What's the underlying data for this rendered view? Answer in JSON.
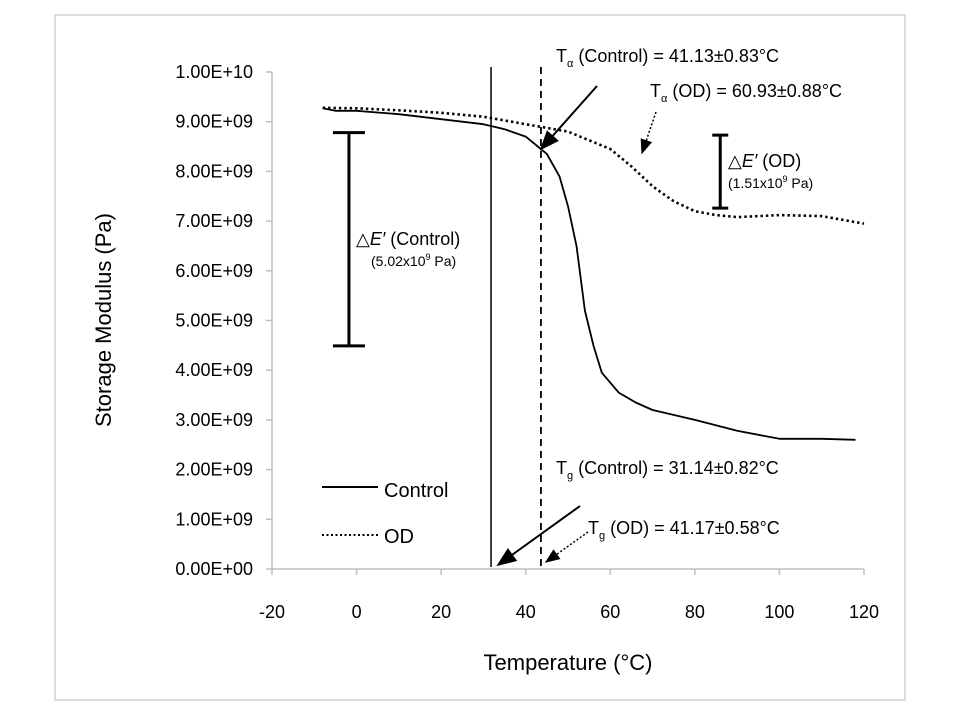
{
  "chart_data": {
    "type": "line",
    "xlabel": "Temperature (°C)",
    "ylabel": "Storage Modulus (Pa)",
    "xlim": [
      -20,
      120
    ],
    "ylim": [
      0,
      10000000000
    ],
    "x_ticks": [
      "-20",
      "0",
      "20",
      "40",
      "60",
      "80",
      "100",
      "120"
    ],
    "y_ticks": [
      "0.00E+00",
      "1.00E+09",
      "2.00E+09",
      "3.00E+09",
      "4.00E+09",
      "5.00E+09",
      "6.00E+09",
      "7.00E+09",
      "8.00E+09",
      "9.00E+09",
      "1.00E+10"
    ],
    "grid": false,
    "legend_position": "bottom-left",
    "series": [
      {
        "name": "Control",
        "style": "solid",
        "x": [
          -8,
          -5,
          0,
          10,
          20,
          30,
          35,
          40,
          45,
          48,
          50,
          52,
          54,
          56,
          58,
          62,
          66,
          70,
          80,
          90,
          100,
          110,
          118
        ],
        "y": [
          9270000000.0,
          9220000000.0,
          9220000000.0,
          9150000000.0,
          9050000000.0,
          8950000000.0,
          8850000000.0,
          8700000000.0,
          8350000000.0,
          7900000000.0,
          7300000000.0,
          6500000000.0,
          5200000000.0,
          4500000000.0,
          3950000000.0,
          3550000000.0,
          3350000000.0,
          3200000000.0,
          3000000000.0,
          2780000000.0,
          2620000000.0,
          2620000000.0,
          2600000000.0
        ]
      },
      {
        "name": "OD",
        "style": "dotted",
        "x": [
          -8,
          0,
          10,
          20,
          30,
          40,
          50,
          60,
          65,
          70,
          75,
          80,
          85,
          90,
          100,
          110,
          120
        ],
        "y": [
          9280000000.0,
          9270000000.0,
          9230000000.0,
          9180000000.0,
          9100000000.0,
          8950000000.0,
          8800000000.0,
          8450000000.0,
          8100000000.0,
          7700000000.0,
          7400000000.0,
          7200000000.0,
          7120000000.0,
          7080000000.0,
          7120000000.0,
          7100000000.0,
          6950000000.0
        ]
      }
    ],
    "vertical_lines": [
      {
        "x": 31.8,
        "style": "solid"
      },
      {
        "x": 43.6,
        "style": "dashed"
      }
    ],
    "error_bars": [
      {
        "x": -1.8,
        "y_top": 8780000000.0,
        "y_bottom": 4490000000.0
      },
      {
        "x": 86,
        "y_top": 8730000000.0,
        "y_bottom": 7260000000.0
      }
    ],
    "annotations": {
      "ta_control": {
        "sym": "T",
        "sub": "α",
        "text": " (Control) = 41.13±0.83°C"
      },
      "ta_od": {
        "sym": "T",
        "sub": "α",
        "text": " (OD) = 60.93±0.88°C"
      },
      "tg_control": {
        "sym": "T",
        "sub": "g",
        "text": " (Control) = 31.14±0.82°C"
      },
      "tg_od": {
        "sym": "T",
        "sub": "g",
        "text": " (OD) = 41.17±0.58°C"
      },
      "de_control": {
        "delta": "△",
        "e": "E′",
        "text": " (Control)",
        "value": "(5.02x10",
        "exp": "9",
        "unit": " Pa)"
      },
      "de_od": {
        "delta": "△",
        "e": "E′",
        "text": " (OD)",
        "value": "(1.51x10",
        "exp": "9",
        "unit": " Pa)"
      }
    }
  }
}
